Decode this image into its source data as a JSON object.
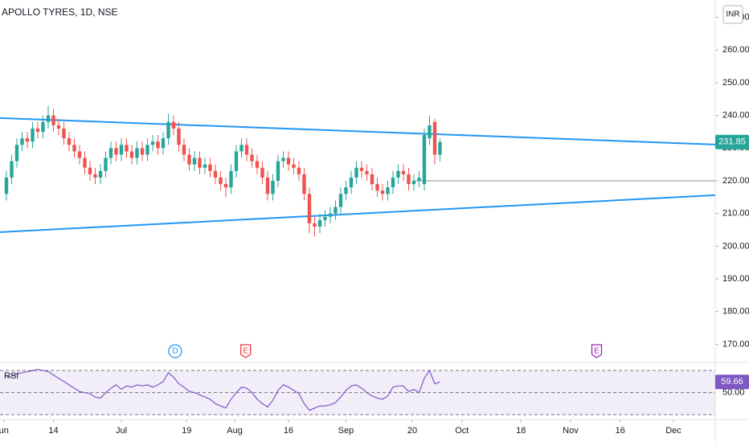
{
  "chart_data": {
    "type": "candlestick",
    "title": "APOLLO TYRES, 1D, NSE",
    "currency": "INR",
    "up_color": "#26a69a",
    "down_color": "#ef5350",
    "xlim": [
      -1.23,
      135.7
    ],
    "xticks": [
      {
        "value": -0.5,
        "label": "un"
      },
      {
        "value": 9,
        "label": "14"
      },
      {
        "value": 22,
        "label": "Jul"
      },
      {
        "value": 34.5,
        "label": "19"
      },
      {
        "value": 43.7,
        "label": "Aug"
      },
      {
        "value": 54,
        "label": "16"
      },
      {
        "value": 65,
        "label": "Sep"
      },
      {
        "value": 77.7,
        "label": "20"
      },
      {
        "value": 87.2,
        "label": "Oct"
      },
      {
        "value": 98.5,
        "label": "18"
      },
      {
        "value": 108,
        "label": "Nov"
      },
      {
        "value": 117.5,
        "label": "16"
      },
      {
        "value": 127.7,
        "label": "Dec"
      }
    ],
    "ylim": [
      164.7,
      275.3
    ],
    "yticks": [
      {
        "value": 170,
        "label": "170.00"
      },
      {
        "value": 180,
        "label": "180.00"
      },
      {
        "value": 190,
        "label": "190.00"
      },
      {
        "value": 200,
        "label": "200.00"
      },
      {
        "value": 210,
        "label": "210.00"
      },
      {
        "value": 220,
        "label": "220.00"
      },
      {
        "value": 230,
        "label": "230.00"
      },
      {
        "value": 240,
        "label": "240.00"
      },
      {
        "value": 250,
        "label": "250.00"
      },
      {
        "value": 260,
        "label": "260.00"
      },
      {
        "value": 270,
        "label": "270.00"
      }
    ],
    "open": [
      216,
      221,
      226,
      231,
      233,
      232,
      236,
      235,
      238,
      240,
      237,
      236,
      233,
      231,
      229,
      227,
      224,
      222,
      221,
      223,
      227,
      230,
      228,
      231,
      229,
      227,
      230,
      228,
      231,
      232,
      230,
      233,
      238,
      236,
      231,
      228,
      225,
      227,
      224,
      225,
      223,
      221,
      219,
      218,
      223,
      229,
      231,
      228,
      226,
      224,
      221,
      216,
      220,
      226,
      227,
      225,
      224,
      222,
      216,
      207,
      206,
      208,
      209,
      210,
      212,
      216,
      218,
      221,
      224,
      223,
      222,
      219,
      217,
      216,
      218,
      221,
      223,
      222,
      219,
      220,
      219,
      233,
      238,
      228
    ],
    "high": [
      223,
      228,
      233,
      235,
      235,
      238,
      238,
      240,
      243,
      242,
      239,
      238,
      235,
      233,
      231,
      229,
      226,
      224,
      225,
      229,
      232,
      232,
      233,
      233,
      231,
      232,
      232,
      233,
      234,
      234,
      235,
      240.5,
      240,
      238,
      233,
      230,
      229,
      229,
      227,
      227,
      225,
      223,
      221,
      225,
      231,
      233,
      233,
      230,
      228,
      226,
      223,
      222,
      228,
      229,
      229,
      227,
      226,
      224,
      218,
      209,
      210,
      211,
      212,
      214,
      218,
      220,
      223,
      226,
      226,
      225,
      224,
      221,
      219,
      220,
      223,
      225,
      225,
      224,
      222,
      223,
      236,
      240,
      239,
      233
    ],
    "low": [
      214,
      219,
      224,
      229,
      230,
      230,
      233,
      233,
      236,
      235,
      234,
      231,
      229,
      227,
      225,
      222,
      220,
      219,
      219,
      221,
      225,
      226,
      226,
      227,
      225,
      225,
      226,
      226,
      229,
      228,
      228,
      231,
      234,
      229,
      226,
      223,
      223,
      222,
      222,
      221,
      219,
      217,
      215,
      216,
      221,
      227,
      226,
      224,
      222,
      219,
      214,
      214,
      218,
      224,
      223,
      222,
      220,
      214,
      204,
      203,
      204,
      206,
      207,
      208,
      210,
      214,
      216,
      219,
      221,
      220,
      217,
      215,
      214,
      214,
      216,
      219,
      220,
      217,
      217,
      218,
      217,
      231,
      225,
      226
    ],
    "close": [
      221,
      226,
      231,
      233,
      232,
      236,
      235,
      238,
      240,
      237,
      236,
      233,
      231,
      229,
      227,
      224,
      222,
      221,
      223,
      227,
      230,
      228,
      231,
      229,
      227,
      230,
      228,
      231,
      232,
      230,
      233,
      238,
      236,
      231,
      228,
      225,
      227,
      224,
      225,
      223,
      221,
      219,
      218,
      223,
      229,
      231,
      228,
      226,
      224,
      221,
      216,
      220,
      226,
      227,
      225,
      224,
      222,
      216,
      207,
      206,
      208,
      209,
      210,
      212,
      216,
      218,
      221,
      224,
      223,
      222,
      219,
      217,
      216,
      218,
      221,
      223,
      222,
      219,
      220,
      221,
      234,
      237,
      228,
      231.85
    ],
    "drawings": [
      {
        "x": [
          -1.23,
          135.7
        ],
        "y": [
          239.2,
          231.1
        ],
        "color": "#2196f3"
      },
      {
        "x": [
          -1.23,
          135.7
        ],
        "y": [
          204.3,
          215.6
        ],
        "color": "#2196f3"
      },
      {
        "x": [
          78,
          135.7
        ],
        "y": [
          220,
          220
        ],
        "color": "#b2b5be"
      }
    ],
    "events": [
      {
        "label": "D",
        "x": 32.3,
        "color": "#2196f3"
      },
      {
        "label": "E",
        "x": 45.8,
        "color": "#f23645"
      },
      {
        "label": "E",
        "x": 113,
        "color": "#9c27b0"
      }
    ],
    "rsi": {
      "name": "RSI",
      "color": "#7e57c2",
      "ylim": [
        26.4,
        74.4
      ],
      "levels": [
        70,
        30
      ],
      "yticks": [
        {
          "value": 50,
          "label": "50.00"
        }
      ],
      "values": [
        64,
        65,
        67,
        68,
        69,
        70,
        71,
        70,
        69,
        66,
        63,
        60,
        57,
        54,
        51,
        50,
        49,
        46,
        45,
        50,
        54,
        57,
        53,
        56,
        55,
        57,
        56,
        57,
        55,
        57,
        60,
        68,
        64,
        58,
        55,
        51,
        50,
        48,
        46,
        44,
        40,
        38,
        36,
        44,
        50,
        55,
        54,
        50,
        44,
        40,
        37,
        43,
        52,
        57,
        55,
        52,
        49,
        40,
        34,
        36,
        38,
        38,
        39,
        41,
        46,
        52,
        56,
        57,
        54,
        50,
        47,
        45,
        44,
        47,
        55,
        56,
        56,
        51,
        53,
        50,
        63,
        70,
        58,
        59.66
      ]
    }
  }
}
